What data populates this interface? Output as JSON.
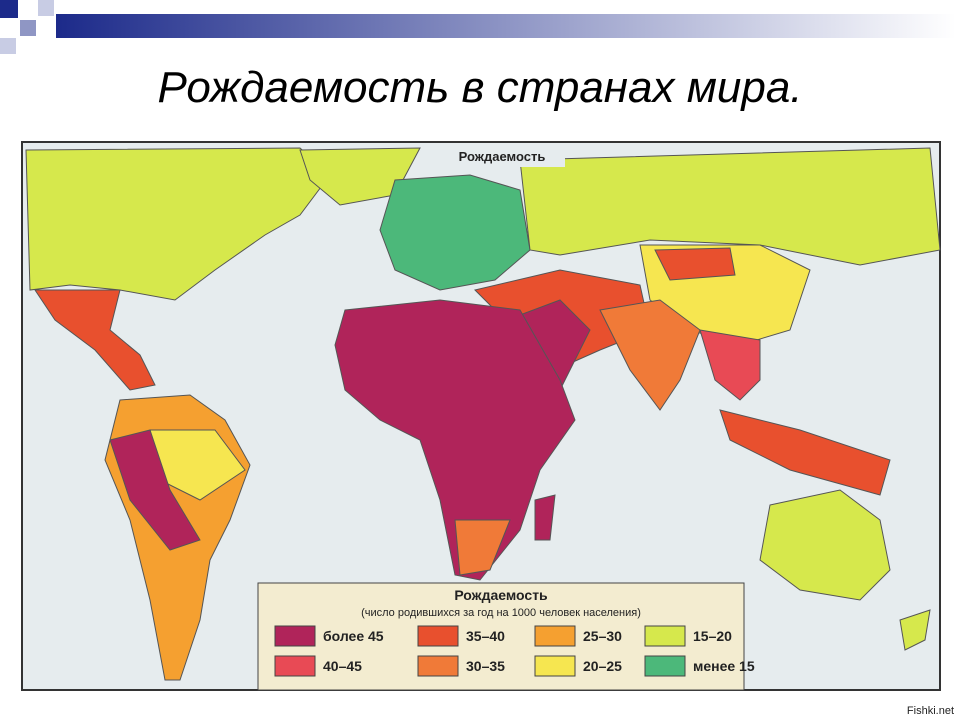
{
  "header": {
    "title": "Рождаемость в странах мира."
  },
  "map": {
    "label": "Рождаемость"
  },
  "legend": {
    "title": "Рождаемость",
    "subtitle": "(число родившихся за год на 1000 человек населения)",
    "items": [
      {
        "label": "более 45",
        "color": "#b0245a"
      },
      {
        "label": "40–45",
        "color": "#e84a55"
      },
      {
        "label": "35–40",
        "color": "#e8502e"
      },
      {
        "label": "30–35",
        "color": "#f07a38"
      },
      {
        "label": "25–30",
        "color": "#f5a030"
      },
      {
        "label": "20–25",
        "color": "#f6e650"
      },
      {
        "label": "15–20",
        "color": "#d6e84c"
      },
      {
        "label": "менее 15",
        "color": "#4cb87a"
      }
    ]
  },
  "watermark": "Fishki.net"
}
